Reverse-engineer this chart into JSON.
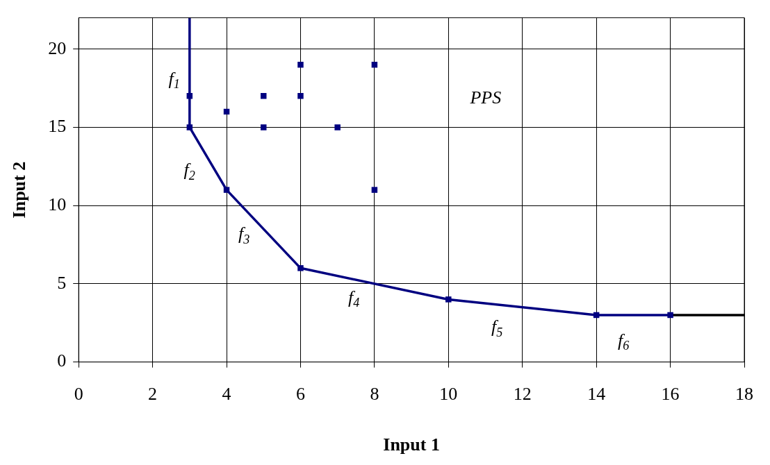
{
  "chart_data": {
    "type": "line",
    "xlabel": "Input 1",
    "ylabel": "Input 2",
    "xlim": [
      0,
      18
    ],
    "xticks": [
      0,
      2,
      4,
      6,
      8,
      10,
      12,
      14,
      16,
      18
    ],
    "ylim": [
      0,
      22
    ],
    "yticks": [
      0,
      5,
      10,
      15,
      20
    ],
    "grid": true,
    "legend": false,
    "series": [
      {
        "color": "#000080",
        "marker": "none",
        "x": [
          3,
          3,
          4,
          6,
          10,
          14,
          16
        ],
        "values": [
          22,
          15,
          11,
          6,
          4,
          3,
          3
        ]
      },
      {
        "color": "#000000",
        "marker": "none",
        "x": [
          16,
          18
        ],
        "values": [
          3,
          3
        ]
      },
      {
        "type": "scatter",
        "color": "#000080",
        "marker": "square",
        "x": [
          3,
          4,
          6,
          10,
          14,
          16,
          3,
          4,
          5,
          5,
          6,
          6,
          7,
          8,
          8
        ],
        "values": [
          15,
          11,
          6,
          4,
          3,
          3,
          17,
          16,
          17,
          15,
          19,
          17,
          15,
          19,
          11
        ]
      }
    ],
    "annotations": [
      "f$_{1}$",
      "f$_{2}$",
      "f$_{3}$",
      "f$_{4}$",
      "f$_{5}$",
      "f$_{6}$",
      "PPS"
    ]
  }
}
